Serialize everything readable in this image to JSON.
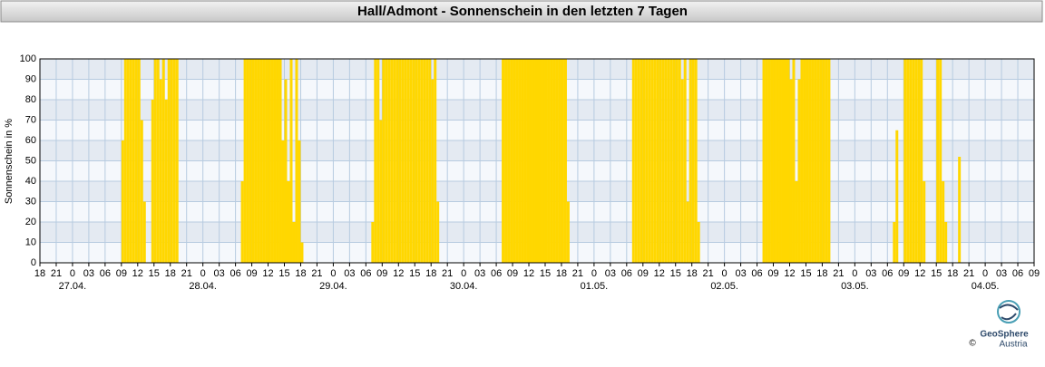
{
  "chart_data": {
    "type": "bar",
    "title": "Hall/Admont - Sonnenschein in den letzten 7 Tagen",
    "ylabel": "Sonnenschein in %",
    "color": "#ffd700",
    "ylim": [
      0,
      100
    ],
    "yticks": [
      0,
      10,
      20,
      30,
      40,
      50,
      60,
      70,
      80,
      90,
      100
    ],
    "xlim": [
      0,
      183
    ],
    "xticks": [
      {
        "value": 0,
        "label": "18"
      },
      {
        "value": 3,
        "label": "21"
      },
      {
        "value": 6,
        "label": "0"
      },
      {
        "value": 9,
        "label": "03"
      },
      {
        "value": 12,
        "label": "06"
      },
      {
        "value": 15,
        "label": "09"
      },
      {
        "value": 18,
        "label": "12"
      },
      {
        "value": 21,
        "label": "15"
      },
      {
        "value": 24,
        "label": "18"
      },
      {
        "value": 27,
        "label": "21"
      },
      {
        "value": 30,
        "label": "0"
      },
      {
        "value": 33,
        "label": "03"
      },
      {
        "value": 36,
        "label": "06"
      },
      {
        "value": 39,
        "label": "09"
      },
      {
        "value": 42,
        "label": "12"
      },
      {
        "value": 45,
        "label": "15"
      },
      {
        "value": 48,
        "label": "18"
      },
      {
        "value": 51,
        "label": "21"
      },
      {
        "value": 54,
        "label": "0"
      },
      {
        "value": 57,
        "label": "03"
      },
      {
        "value": 60,
        "label": "06"
      },
      {
        "value": 63,
        "label": "09"
      },
      {
        "value": 66,
        "label": "12"
      },
      {
        "value": 69,
        "label": "15"
      },
      {
        "value": 72,
        "label": "18"
      },
      {
        "value": 75,
        "label": "21"
      },
      {
        "value": 78,
        "label": "0"
      },
      {
        "value": 81,
        "label": "03"
      },
      {
        "value": 84,
        "label": "06"
      },
      {
        "value": 87,
        "label": "09"
      },
      {
        "value": 90,
        "label": "12"
      },
      {
        "value": 93,
        "label": "15"
      },
      {
        "value": 96,
        "label": "18"
      },
      {
        "value": 99,
        "label": "21"
      },
      {
        "value": 102,
        "label": "0"
      },
      {
        "value": 105,
        "label": "03"
      },
      {
        "value": 108,
        "label": "06"
      },
      {
        "value": 111,
        "label": "09"
      },
      {
        "value": 114,
        "label": "12"
      },
      {
        "value": 117,
        "label": "15"
      },
      {
        "value": 120,
        "label": "18"
      },
      {
        "value": 123,
        "label": "21"
      },
      {
        "value": 126,
        "label": "0"
      },
      {
        "value": 129,
        "label": "03"
      },
      {
        "value": 132,
        "label": "06"
      },
      {
        "value": 135,
        "label": "09"
      },
      {
        "value": 138,
        "label": "12"
      },
      {
        "value": 141,
        "label": "15"
      },
      {
        "value": 144,
        "label": "18"
      },
      {
        "value": 147,
        "label": "21"
      },
      {
        "value": 150,
        "label": "0"
      },
      {
        "value": 153,
        "label": "03"
      },
      {
        "value": 156,
        "label": "06"
      },
      {
        "value": 159,
        "label": "09"
      },
      {
        "value": 162,
        "label": "12"
      },
      {
        "value": 165,
        "label": "15"
      },
      {
        "value": 168,
        "label": "18"
      },
      {
        "value": 171,
        "label": "21"
      },
      {
        "value": 174,
        "label": "0"
      },
      {
        "value": 177,
        "label": "03"
      },
      {
        "value": 180,
        "label": "06"
      },
      {
        "value": 183,
        "label": "09"
      }
    ],
    "date_labels": [
      {
        "value": 6,
        "label": "27.04."
      },
      {
        "value": 30,
        "label": "28.04."
      },
      {
        "value": 54,
        "label": "29.04."
      },
      {
        "value": 78,
        "label": "30.04."
      },
      {
        "value": 102,
        "label": "01.05."
      },
      {
        "value": 126,
        "label": "02.05."
      },
      {
        "value": 150,
        "label": "03.05."
      },
      {
        "value": 174,
        "label": "04.05."
      }
    ],
    "grid": true,
    "x": [
      15,
      15.5,
      16,
      16.5,
      17,
      17.5,
      18,
      18.5,
      19,
      20.5,
      21,
      21.5,
      22,
      22.5,
      23,
      23.5,
      24,
      24.5,
      25,
      37,
      37.5,
      38,
      38.5,
      39,
      39.5,
      40,
      40.5,
      41,
      41.5,
      42,
      42.5,
      43,
      43.5,
      44,
      44.5,
      45,
      45.5,
      46,
      46.5,
      47,
      47.5,
      48,
      61,
      61.5,
      62,
      62.5,
      63,
      63.5,
      64,
      64.5,
      65,
      65.5,
      66,
      66.5,
      67,
      67.5,
      68,
      68.5,
      69,
      69.5,
      70,
      70.5,
      71,
      71.5,
      72,
      72.5,
      73,
      85,
      85.5,
      86,
      86.5,
      87,
      87.5,
      88,
      88.5,
      89,
      89.5,
      90,
      90.5,
      91,
      91.5,
      92,
      92.5,
      93,
      93.5,
      94,
      94.5,
      95,
      95.5,
      96,
      96.5,
      97,
      109,
      109.5,
      110,
      110.5,
      111,
      111.5,
      112,
      112.5,
      113,
      113.5,
      114,
      114.5,
      115,
      115.5,
      116,
      116.5,
      117,
      117.5,
      118,
      118.5,
      119,
      119.5,
      120,
      120.5,
      121,
      133,
      133.5,
      134,
      134.5,
      135,
      135.5,
      136,
      136.5,
      137,
      137.5,
      138,
      138.5,
      139,
      139.5,
      140,
      140.5,
      141,
      141.5,
      142,
      142.5,
      143,
      143.5,
      144,
      144.5,
      145,
      157,
      157.5,
      159,
      159.5,
      160,
      160.5,
      161,
      161.5,
      162,
      162.5,
      165,
      165.5,
      166,
      166.5,
      169
    ],
    "values": [
      60,
      100,
      100,
      100,
      100,
      100,
      100,
      70,
      30,
      80,
      100,
      100,
      90,
      100,
      80,
      100,
      100,
      100,
      100,
      40,
      100,
      100,
      100,
      100,
      100,
      100,
      100,
      100,
      100,
      100,
      100,
      100,
      100,
      100,
      60,
      90,
      40,
      100,
      20,
      100,
      60,
      10,
      20,
      100,
      100,
      70,
      100,
      100,
      100,
      100,
      100,
      100,
      100,
      100,
      100,
      100,
      100,
      100,
      100,
      100,
      100,
      100,
      100,
      100,
      90,
      100,
      30,
      100,
      100,
      100,
      100,
      100,
      100,
      100,
      100,
      100,
      100,
      100,
      100,
      100,
      100,
      100,
      100,
      100,
      100,
      100,
      100,
      100,
      100,
      100,
      100,
      30,
      100,
      100,
      100,
      100,
      100,
      100,
      100,
      100,
      100,
      100,
      100,
      100,
      100,
      100,
      100,
      100,
      100,
      100,
      90,
      100,
      30,
      100,
      100,
      100,
      20,
      100,
      100,
      100,
      100,
      100,
      100,
      100,
      100,
      100,
      100,
      90,
      100,
      40,
      90,
      100,
      100,
      100,
      100,
      100,
      100,
      100,
      100,
      100,
      100,
      100,
      20,
      65,
      100,
      100,
      100,
      100,
      100,
      100,
      100,
      40,
      100,
      100,
      40,
      20,
      52
    ]
  },
  "logo": {
    "name": "GeoSphere",
    "sub": "Austria",
    "copyright": "©"
  }
}
